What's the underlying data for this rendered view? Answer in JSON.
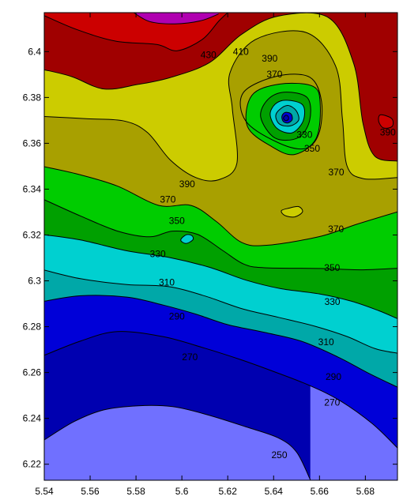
{
  "chart_data": {
    "type": "contour",
    "title": "",
    "xlabel": "",
    "ylabel": "",
    "xlim": [
      5.54,
      5.694
    ],
    "ylim": [
      6.213,
      6.417
    ],
    "x_ticks": [
      {
        "value": 5.54,
        "label": "5.54"
      },
      {
        "value": 5.56,
        "label": "5.56"
      },
      {
        "value": 5.58,
        "label": "5.58"
      },
      {
        "value": 5.6,
        "label": "5.6"
      },
      {
        "value": 5.62,
        "label": "5.62"
      },
      {
        "value": 5.64,
        "label": "5.64"
      },
      {
        "value": 5.66,
        "label": "5.66"
      },
      {
        "value": 5.68,
        "label": "5.68"
      }
    ],
    "y_ticks": [
      {
        "value": 6.22,
        "label": "6.22"
      },
      {
        "value": 6.24,
        "label": "6.24"
      },
      {
        "value": 6.26,
        "label": "6.26"
      },
      {
        "value": 6.28,
        "label": "6.28"
      },
      {
        "value": 6.3,
        "label": "6.3"
      },
      {
        "value": 6.32,
        "label": "6.32"
      },
      {
        "value": 6.34,
        "label": "6.34"
      },
      {
        "value": 6.36,
        "label": "6.36"
      },
      {
        "value": 6.38,
        "label": "6.38"
      },
      {
        "value": 6.4,
        "label": "6.4"
      }
    ],
    "levels": [
      250,
      270,
      290,
      310,
      330,
      350,
      370,
      390,
      410,
      430
    ],
    "colors": {
      "lt250": "#7070ff",
      "250_270": "#0000b0",
      "270_290": "#0000d8",
      "290_310": "#00a8a8",
      "310_330": "#00d0d0",
      "330_350": "#00a000",
      "350_370": "#00cc00",
      "370_390": "#a8a000",
      "390_410": "#cccc00",
      "410_430": "#a00000",
      "430_450": "#cc0000",
      "gt450": "#b000b0"
    },
    "contours": [
      {
        "level": 250,
        "points": [
          [
            5.54,
            6.2306
          ],
          [
            5.553,
            6.2386
          ],
          [
            5.566,
            6.2437
          ],
          [
            5.581,
            6.2455
          ],
          [
            5.596,
            6.2451
          ],
          [
            5.611,
            6.2416
          ],
          [
            5.628,
            6.2363
          ],
          [
            5.642,
            6.2315
          ],
          [
            5.65,
            6.2253
          ],
          [
            5.656,
            6.2132
          ]
        ]
      },
      {
        "level": 270,
        "points": [
          [
            5.54,
            6.2675
          ],
          [
            5.556,
            6.2738
          ],
          [
            5.572,
            6.2779
          ],
          [
            5.592,
            6.2756
          ],
          [
            5.61,
            6.2706
          ],
          [
            5.626,
            6.2655
          ],
          [
            5.642,
            6.2597
          ],
          [
            5.656,
            6.2542
          ],
          [
            5.669,
            6.2477
          ],
          [
            5.683,
            6.2377
          ],
          [
            5.694,
            6.2271
          ]
        ]
      },
      {
        "level": 290,
        "points": [
          [
            5.54,
            6.2911
          ],
          [
            5.556,
            6.2935
          ],
          [
            5.576,
            6.2929
          ],
          [
            5.592,
            6.2894
          ],
          [
            5.606,
            6.2855
          ],
          [
            5.62,
            6.2809
          ],
          [
            5.636,
            6.2775
          ],
          [
            5.652,
            6.2737
          ],
          [
            5.668,
            6.2668
          ],
          [
            5.681,
            6.2599
          ],
          [
            5.694,
            6.2536
          ]
        ]
      },
      {
        "level": 310,
        "points": [
          [
            5.54,
            6.3047
          ],
          [
            5.556,
            6.3009
          ],
          [
            5.576,
            6.2984
          ],
          [
            5.594,
            6.2975
          ],
          [
            5.61,
            6.2934
          ],
          [
            5.626,
            6.2879
          ],
          [
            5.642,
            6.2841
          ],
          [
            5.658,
            6.2802
          ],
          [
            5.672,
            6.2757
          ],
          [
            5.684,
            6.2705
          ],
          [
            5.694,
            6.2684
          ]
        ]
      },
      {
        "level": 330,
        "points": [
          [
            5.54,
            6.3201
          ],
          [
            5.556,
            6.3178
          ],
          [
            5.576,
            6.3131
          ],
          [
            5.595,
            6.3101
          ],
          [
            5.612,
            6.3059
          ],
          [
            5.628,
            6.3003
          ],
          [
            5.643,
            6.2966
          ],
          [
            5.66,
            6.2943
          ],
          [
            5.674,
            6.2911
          ],
          [
            5.686,
            6.2869
          ],
          [
            5.694,
            6.2835
          ]
        ]
      },
      {
        "level": 350,
        "points": [
          [
            5.54,
            6.3354
          ],
          [
            5.556,
            6.3282
          ],
          [
            5.572,
            6.3217
          ],
          [
            5.586,
            6.3192
          ],
          [
            5.596,
            6.3217
          ],
          [
            5.607,
            6.3202
          ],
          [
            5.618,
            6.3131
          ],
          [
            5.627,
            6.3073
          ],
          [
            5.636,
            6.3057
          ],
          [
            5.66,
            6.3054
          ],
          [
            5.678,
            6.3048
          ],
          [
            5.694,
            6.3055
          ]
        ]
      },
      {
        "level": 370,
        "points": [
          [
            5.54,
            6.3498
          ],
          [
            5.556,
            6.3462
          ],
          [
            5.572,
            6.3413
          ],
          [
            5.59,
            6.3329
          ],
          [
            5.604,
            6.3329
          ],
          [
            5.615,
            6.3259
          ],
          [
            5.626,
            6.3168
          ],
          [
            5.637,
            6.3155
          ],
          [
            5.66,
            6.3193
          ],
          [
            5.676,
            6.3246
          ],
          [
            5.694,
            6.3301
          ]
        ]
      },
      {
        "level": 390,
        "points": [
          [
            5.54,
            6.3717
          ],
          [
            5.559,
            6.3707
          ],
          [
            5.575,
            6.3697
          ],
          [
            5.585,
            6.3647
          ],
          [
            5.595,
            6.3527
          ],
          [
            5.606,
            6.3451
          ],
          [
            5.616,
            6.3441
          ],
          [
            5.624,
            6.3513
          ],
          [
            5.622,
            6.3752
          ],
          [
            5.621,
            6.3908
          ],
          [
            5.632,
            6.4052
          ],
          [
            5.654,
            6.4084
          ],
          [
            5.667,
            6.3938
          ],
          [
            5.67,
            6.3708
          ],
          [
            5.672,
            6.3502
          ],
          [
            5.679,
            6.3446
          ],
          [
            5.694,
            6.3451
          ]
        ]
      },
      {
        "level": 410,
        "points": [
          [
            5.54,
            6.3921
          ],
          [
            5.552,
            6.3891
          ],
          [
            5.566,
            6.3837
          ],
          [
            5.581,
            6.3857
          ],
          [
            5.595,
            6.3887
          ],
          [
            5.612,
            6.3952
          ],
          [
            5.626,
            6.4075
          ],
          [
            5.642,
            6.4155
          ],
          [
            5.664,
            6.4148
          ],
          [
            5.675,
            6.3945
          ],
          [
            5.679,
            6.3685
          ],
          [
            5.684,
            6.3545
          ],
          [
            5.694,
            6.3522
          ]
        ]
      },
      {
        "level": 430,
        "points": [
          [
            5.54,
            6.4157
          ],
          [
            5.554,
            6.4097
          ],
          [
            5.571,
            6.4046
          ],
          [
            5.589,
            6.4031
          ],
          [
            5.598,
            6.4004
          ],
          [
            5.609,
            6.4054
          ],
          [
            5.616,
            6.4132
          ],
          [
            5.62,
            6.417
          ]
        ]
      },
      {
        "level": 450,
        "points": [
          [
            5.579,
            6.417
          ],
          [
            5.586,
            6.4131
          ],
          [
            5.597,
            6.4121
          ],
          [
            5.608,
            6.4134
          ],
          [
            5.616,
            6.4164
          ]
        ]
      }
    ],
    "closed_contours": [
      {
        "level": 390,
        "points": [
          [
            5.6416,
            6.3893
          ],
          [
            5.6558,
            6.3888
          ],
          [
            5.6609,
            6.3782
          ],
          [
            5.6597,
            6.3641
          ],
          [
            5.6536,
            6.3577
          ],
          [
            5.6419,
            6.3603
          ],
          [
            5.6279,
            6.3697
          ],
          [
            5.6268,
            6.3821
          ]
        ]
      },
      {
        "level": 370,
        "points": [
          [
            5.6425,
            6.3858
          ],
          [
            5.6571,
            6.3849
          ],
          [
            5.6603,
            6.3772
          ],
          [
            5.6585,
            6.3621
          ],
          [
            5.6491,
            6.3551
          ],
          [
            5.6393,
            6.3585
          ],
          [
            5.6286,
            6.3673
          ],
          [
            5.6305,
            6.3809
          ]
        ]
      },
      {
        "level": 350,
        "points": [
          [
            5.6445,
            6.3823
          ],
          [
            5.6547,
            6.3799
          ],
          [
            5.6557,
            6.3699
          ],
          [
            5.6506,
            6.3624
          ],
          [
            5.6406,
            6.3623
          ],
          [
            5.6344,
            6.3713
          ],
          [
            5.6373,
            6.3789
          ]
        ]
      },
      {
        "level": 330,
        "points": [
          [
            5.6456,
            6.3788
          ],
          [
            5.6527,
            6.3767
          ],
          [
            5.6529,
            6.3698
          ],
          [
            5.6481,
            6.3646
          ],
          [
            5.6416,
            6.3664
          ],
          [
            5.6385,
            6.3724
          ],
          [
            5.6407,
            6.3771
          ]
        ]
      },
      {
        "level": 310,
        "points": [
          [
            5.6462,
            6.3765
          ],
          [
            5.6498,
            6.3743
          ],
          [
            5.6509,
            6.3701
          ],
          [
            5.6473,
            6.3676
          ],
          [
            5.6427,
            6.3683
          ],
          [
            5.6409,
            6.3718
          ],
          [
            5.6426,
            6.3747
          ]
        ]
      },
      {
        "level": 290,
        "points": [
          [
            5.6458,
            6.3735
          ],
          [
            5.6477,
            6.3727
          ],
          [
            5.6481,
            6.3703
          ],
          [
            5.6463,
            6.3689
          ],
          [
            5.6444,
            6.3694
          ],
          [
            5.6436,
            6.3712
          ],
          [
            5.6442,
            6.3729
          ]
        ]
      },
      {
        "level": 270,
        "points": [
          [
            5.6453,
            6.3722
          ],
          [
            5.6463,
            6.3718
          ],
          [
            5.6465,
            6.3706
          ],
          [
            5.6456,
            6.3699
          ],
          [
            5.6447,
            6.3702
          ],
          [
            5.6443,
            6.3711
          ]
        ]
      },
      {
        "level": 370,
        "points": [
          [
            5.6467,
            6.3317
          ],
          [
            5.6509,
            6.3324
          ],
          [
            5.6526,
            6.3301
          ],
          [
            5.6492,
            6.3279
          ],
          [
            5.6449,
            6.3285
          ],
          [
            5.6434,
            6.3306
          ]
        ]
      },
      {
        "level": 350,
        "points": [
          [
            5.6019,
            6.3201
          ],
          [
            5.6044,
            6.3197
          ],
          [
            5.6048,
            6.3179
          ],
          [
            5.6018,
            6.3163
          ],
          [
            5.5995,
            6.3178
          ]
        ]
      },
      {
        "level": 430,
        "points": [
          [
            5.6866,
            6.3724
          ],
          [
            5.6915,
            6.3708
          ],
          [
            5.6917,
            6.3674
          ],
          [
            5.6879,
            6.3667
          ],
          [
            5.6858,
            6.3696
          ]
        ]
      }
    ],
    "contour_labels": [
      {
        "text": "250",
        "x": 5.6425,
        "y": 6.2237
      },
      {
        "text": "270",
        "x": 5.6655,
        "y": 6.2466
      },
      {
        "text": "270",
        "x": 5.6035,
        "y": 6.2664
      },
      {
        "text": "290",
        "x": 5.6661,
        "y": 6.2578
      },
      {
        "text": "290",
        "x": 5.5978,
        "y": 6.2843
      },
      {
        "text": "310",
        "x": 5.6629,
        "y": 6.2731
      },
      {
        "text": "310",
        "x": 5.5934,
        "y": 6.2991
      },
      {
        "text": "330",
        "x": 5.6656,
        "y": 6.2906
      },
      {
        "text": "330",
        "x": 5.5895,
        "y": 6.3115
      },
      {
        "text": "350",
        "x": 5.6655,
        "y": 6.3054
      },
      {
        "text": "350",
        "x": 5.5978,
        "y": 6.3259
      },
      {
        "text": "370",
        "x": 5.6672,
        "y": 6.3223
      },
      {
        "text": "370",
        "x": 5.5939,
        "y": 6.3352
      },
      {
        "text": "390",
        "x": 5.6023,
        "y": 6.3419
      },
      {
        "text": "390",
        "x": 5.6898,
        "y": 6.3645
      },
      {
        "text": "390",
        "x": 5.6383,
        "y": 6.3967
      },
      {
        "text": "370",
        "x": 5.6404,
        "y": 6.3898
      },
      {
        "text": "350",
        "x": 5.6568,
        "y": 6.3575
      },
      {
        "text": "330",
        "x": 5.6535,
        "y": 6.3635
      },
      {
        "text": "370",
        "x": 5.6673,
        "y": 6.3471
      },
      {
        "text": "410",
        "x": 5.6257,
        "y": 6.3997
      },
      {
        "text": "430",
        "x": 5.6116,
        "y": 6.3983
      }
    ]
  }
}
